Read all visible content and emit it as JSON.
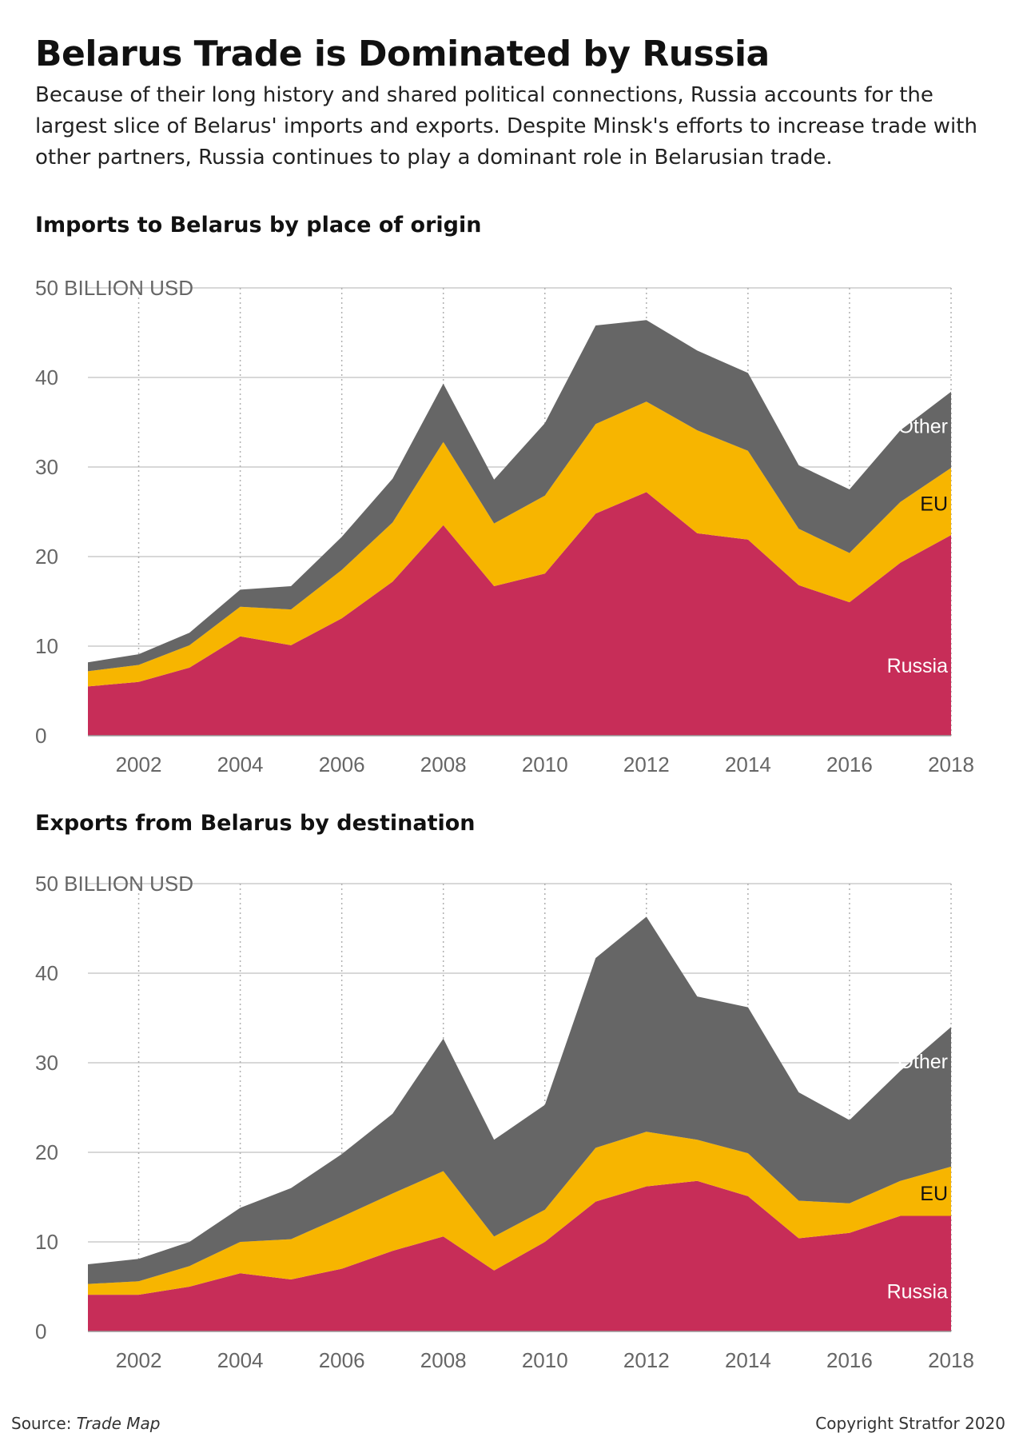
{
  "title": "Belarus Trade is Dominated by Russia",
  "subtitle": "Because of their long history and shared political connections, Russia accounts for the largest slice of Belarus' imports and exports. Despite Minsk's efforts to increase trade with other partners, Russia continues to play a dominant role in Belarusian trade.",
  "source_prefix": "Source:",
  "source_name": "Trade Map",
  "copyright": "Copyright Stratfor 2020",
  "colors": {
    "Russia": "#c72d58",
    "EU": "#f7b500",
    "Other": "#666666",
    "grid": "#cccccc"
  },
  "chart_data": [
    {
      "type": "area",
      "stacked": true,
      "title": "Imports to Belarus by place of origin",
      "y_unit_label": "50 BILLION USD",
      "ylim": [
        0,
        50
      ],
      "yticks": [
        0,
        10,
        20,
        30,
        40,
        50
      ],
      "xlim": [
        2001,
        2018
      ],
      "xticks": [
        2002,
        2004,
        2006,
        2008,
        2010,
        2012,
        2014,
        2016,
        2018
      ],
      "x": [
        2001,
        2002,
        2003,
        2004,
        2005,
        2006,
        2007,
        2008,
        2009,
        2010,
        2011,
        2012,
        2013,
        2014,
        2015,
        2016,
        2017,
        2018
      ],
      "series": [
        {
          "name": "Russia",
          "values": [
            5.5,
            6.0,
            7.6,
            11.1,
            10.1,
            13.1,
            17.2,
            23.5,
            16.7,
            18.1,
            24.8,
            27.2,
            22.6,
            21.9,
            16.8,
            14.9,
            19.3,
            22.4
          ]
        },
        {
          "name": "EU",
          "values": [
            1.7,
            1.9,
            2.5,
            3.3,
            4.0,
            5.4,
            6.6,
            9.3,
            7.0,
            8.7,
            10.0,
            10.1,
            11.5,
            9.9,
            6.3,
            5.5,
            6.8,
            7.5
          ]
        },
        {
          "name": "Other",
          "values": [
            1.0,
            1.2,
            1.4,
            1.9,
            2.6,
            3.7,
            4.9,
            6.5,
            4.9,
            8.1,
            11.0,
            9.1,
            8.9,
            8.7,
            7.1,
            7.1,
            8.0,
            8.5
          ]
        }
      ]
    },
    {
      "type": "area",
      "stacked": true,
      "title": "Exports from Belarus by destination",
      "y_unit_label": "50 BILLION USD",
      "ylim": [
        0,
        50
      ],
      "yticks": [
        0,
        10,
        20,
        30,
        40,
        50
      ],
      "xlim": [
        2001,
        2018
      ],
      "xticks": [
        2002,
        2004,
        2006,
        2008,
        2010,
        2012,
        2014,
        2016,
        2018
      ],
      "x": [
        2001,
        2002,
        2003,
        2004,
        2005,
        2006,
        2007,
        2008,
        2009,
        2010,
        2011,
        2012,
        2013,
        2014,
        2015,
        2016,
        2017,
        2018
      ],
      "series": [
        {
          "name": "Russia",
          "values": [
            4.1,
            4.1,
            5.0,
            6.5,
            5.8,
            7.0,
            9.0,
            10.6,
            6.8,
            10.0,
            14.5,
            16.2,
            16.8,
            15.1,
            10.4,
            11.0,
            12.9,
            12.9
          ]
        },
        {
          "name": "EU",
          "values": [
            1.2,
            1.5,
            2.3,
            3.5,
            4.5,
            5.8,
            6.4,
            7.3,
            3.8,
            3.6,
            6.0,
            6.1,
            4.6,
            4.8,
            4.2,
            3.3,
            3.9,
            5.5
          ]
        },
        {
          "name": "Other",
          "values": [
            2.2,
            2.5,
            2.7,
            3.8,
            5.7,
            7.0,
            8.9,
            14.8,
            10.8,
            11.7,
            21.2,
            24.0,
            16.0,
            16.3,
            12.1,
            9.3,
            12.3,
            15.6
          ]
        }
      ]
    }
  ]
}
